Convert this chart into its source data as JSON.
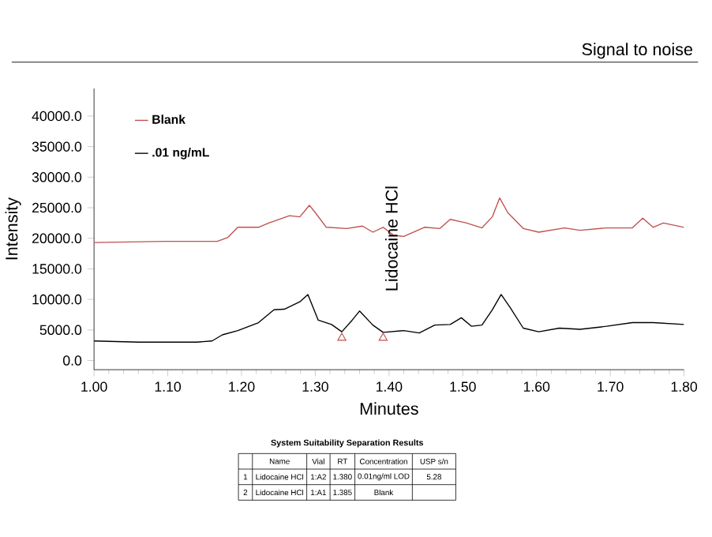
{
  "chart_data": {
    "type": "line",
    "title": "Signal to noise",
    "xlabel": "Minutes",
    "ylabel": "Intensity",
    "xlim": [
      1.0,
      1.8
    ],
    "ylim": [
      -1500,
      44500
    ],
    "xticks": [
      {
        "value": 1.0,
        "label": "1.00"
      },
      {
        "value": 1.1,
        "label": "1.10"
      },
      {
        "value": 1.2,
        "label": "1.20"
      },
      {
        "value": 1.3,
        "label": "1.30"
      },
      {
        "value": 1.4,
        "label": "1.40"
      },
      {
        "value": 1.5,
        "label": "1.50"
      },
      {
        "value": 1.6,
        "label": "1.60"
      },
      {
        "value": 1.7,
        "label": "1.70"
      },
      {
        "value": 1.8,
        "label": "1.80"
      }
    ],
    "yticks": [
      {
        "value": 0,
        "label": "0.0"
      },
      {
        "value": 5000,
        "label": "5000.0"
      },
      {
        "value": 10000,
        "label": "10000.0"
      },
      {
        "value": 15000,
        "label": "15000.0"
      },
      {
        "value": 20000,
        "label": "20000.0"
      },
      {
        "value": 25000,
        "label": "25000.0"
      },
      {
        "value": 30000,
        "label": "30000.0"
      },
      {
        "value": 35000,
        "label": "35000.0"
      },
      {
        "value": 40000,
        "label": "40000.0"
      }
    ],
    "legend": "top left",
    "series": [
      {
        "name": "Blank",
        "color": "#c0504d",
        "x": [
          1.0,
          1.096,
          1.167,
          1.181,
          1.195,
          1.223,
          1.237,
          1.265,
          1.279,
          1.292,
          1.3,
          1.315,
          1.343,
          1.364,
          1.378,
          1.392,
          1.406,
          1.42,
          1.448,
          1.469,
          1.483,
          1.498,
          1.505,
          1.526,
          1.54,
          1.55,
          1.561,
          1.582,
          1.603,
          1.638,
          1.659,
          1.695,
          1.73,
          1.744,
          1.758,
          1.772,
          1.8
        ],
        "values": [
          19300,
          19500,
          19500,
          20100,
          21800,
          21800,
          22500,
          23700,
          23500,
          25400,
          24200,
          21800,
          21600,
          22000,
          21000,
          21800,
          20500,
          20300,
          21800,
          21600,
          23100,
          22700,
          22500,
          21700,
          23500,
          26600,
          24200,
          21600,
          21000,
          21700,
          21300,
          21700,
          21700,
          23300,
          21800,
          22500,
          21800
        ]
      },
      {
        "name": ".01 ng/mL",
        "color": "#000000",
        "x": [
          1.0,
          1.061,
          1.11,
          1.139,
          1.16,
          1.174,
          1.195,
          1.223,
          1.244,
          1.258,
          1.279,
          1.29,
          1.304,
          1.322,
          1.336,
          1.35,
          1.36,
          1.378,
          1.392,
          1.42,
          1.441,
          1.462,
          1.483,
          1.498,
          1.512,
          1.526,
          1.54,
          1.552,
          1.564,
          1.582,
          1.603,
          1.631,
          1.659,
          1.695,
          1.73,
          1.758,
          1.8
        ],
        "values": [
          3200,
          3000,
          3000,
          3000,
          3200,
          4200,
          4900,
          6200,
          8300,
          8400,
          9600,
          10800,
          6600,
          5900,
          4700,
          6600,
          8100,
          5800,
          4600,
          4900,
          4500,
          5800,
          5900,
          7000,
          5600,
          5800,
          8300,
          10800,
          8700,
          5300,
          4700,
          5300,
          5100,
          5600,
          6200,
          6200,
          5900
        ]
      },
      {
        "type": "scatter",
        "marker": "triangle",
        "color": "#c0504d",
        "x": [
          1.336,
          1.392
        ],
        "values": [
          3700,
          3700
        ]
      }
    ],
    "annotations": [
      {
        "text": "Lidocaine HCl",
        "x": 1.36,
        "y": 8100
      },
      "System Suitability Separation Results",
      "Name",
      "Vial",
      "RT",
      "Concentration",
      "USP s/n",
      "1",
      "Lidocaine HCl",
      "1:A2",
      "1.380",
      "0.01ng/ml LOD",
      "5.28",
      "2",
      "Lidocaine HCl",
      "1:A1",
      "1.385",
      "Blank"
    ]
  }
}
